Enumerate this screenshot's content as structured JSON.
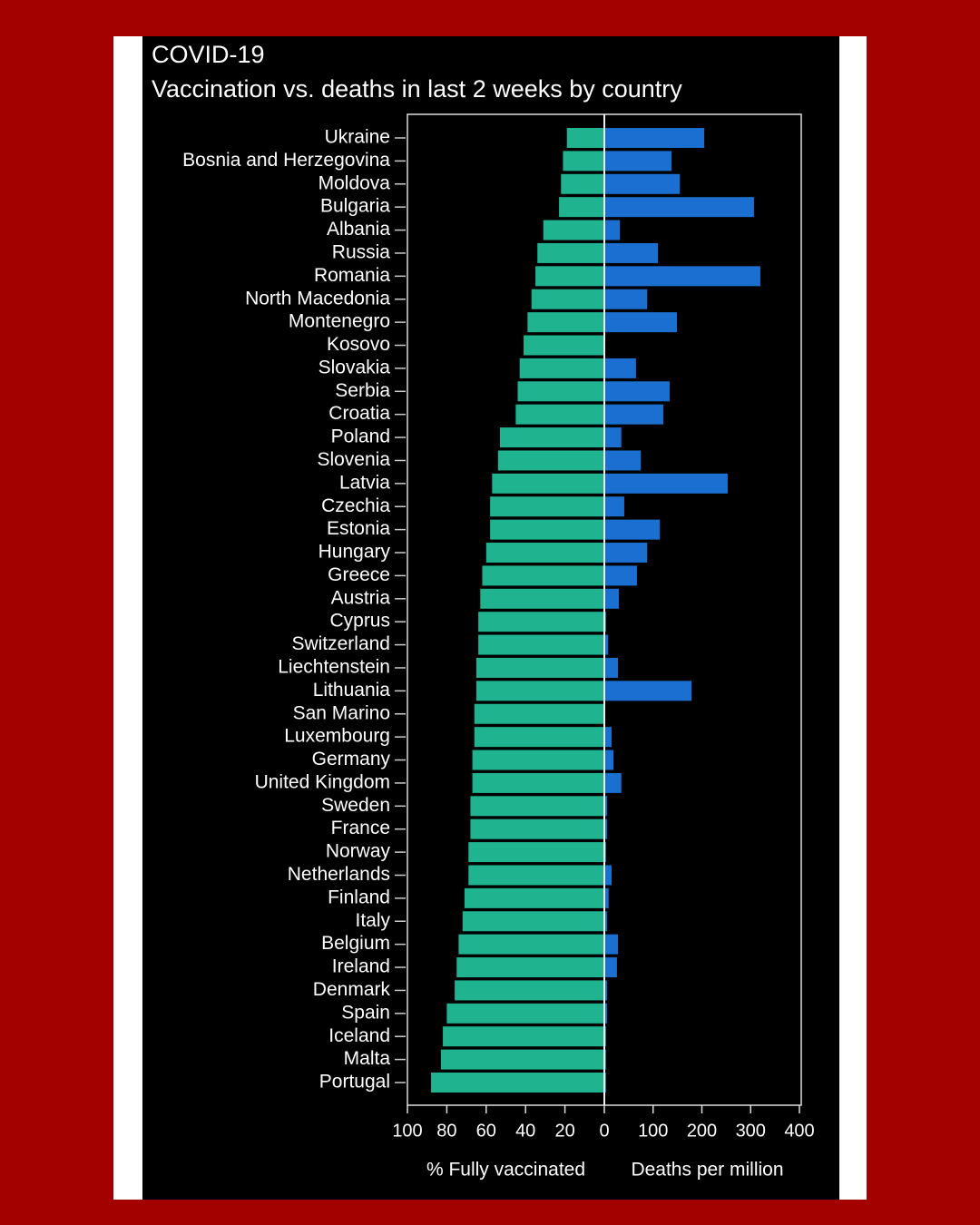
{
  "chart_data": {
    "type": "butterfly",
    "title": "COVID-19",
    "subtitle": "Vaccination vs. deaths in last 2 weeks by country",
    "categories": [
      "Ukraine",
      "Bosnia and Herzegovina",
      "Moldova",
      "Bulgaria",
      "Albania",
      "Russia",
      "Romania",
      "North Macedonia",
      "Montenegro",
      "Kosovo",
      "Slovakia",
      "Serbia",
      "Croatia",
      "Poland",
      "Slovenia",
      "Latvia",
      "Czechia",
      "Estonia",
      "Hungary",
      "Greece",
      "Austria",
      "Cyprus",
      "Switzerland",
      "Liechtenstein",
      "Lithuania",
      "San Marino",
      "Luxembourg",
      "Germany",
      "United Kingdom",
      "Sweden",
      "France",
      "Norway",
      "Netherlands",
      "Finland",
      "Italy",
      "Belgium",
      "Ireland",
      "Denmark",
      "Spain",
      "Iceland",
      "Malta",
      "Portugal"
    ],
    "series": [
      {
        "name": "% Fully vaccinated",
        "color": "#1fb390",
        "axis": "x",
        "values": [
          19,
          21,
          22,
          23,
          31,
          34,
          35,
          37,
          39,
          41,
          43,
          44,
          45,
          53,
          54,
          57,
          58,
          58,
          60,
          62,
          63,
          64,
          64,
          65,
          65,
          66,
          66,
          67,
          67,
          68,
          68,
          69,
          69,
          71,
          72,
          74,
          75,
          76,
          80,
          82,
          83,
          88
        ]
      },
      {
        "name": "Deaths per million",
        "color": "#1a6fd0",
        "axis": "x2",
        "values": [
          203,
          136,
          153,
          305,
          30,
          108,
          318,
          86,
          147,
          0,
          63,
          132,
          119,
          33,
          73,
          251,
          39,
          112,
          86,
          65,
          28,
          2,
          6,
          26,
          177,
          0,
          13,
          17,
          33,
          4,
          4,
          2,
          13,
          7,
          4,
          26,
          24,
          4,
          4,
          2,
          2,
          2
        ]
      }
    ],
    "xlim": [
      0,
      100
    ],
    "xticks": [
      100,
      80,
      60,
      40,
      20,
      0
    ],
    "x2lim": [
      0,
      400
    ],
    "x2ticks": [
      100,
      200,
      300,
      400
    ]
  }
}
